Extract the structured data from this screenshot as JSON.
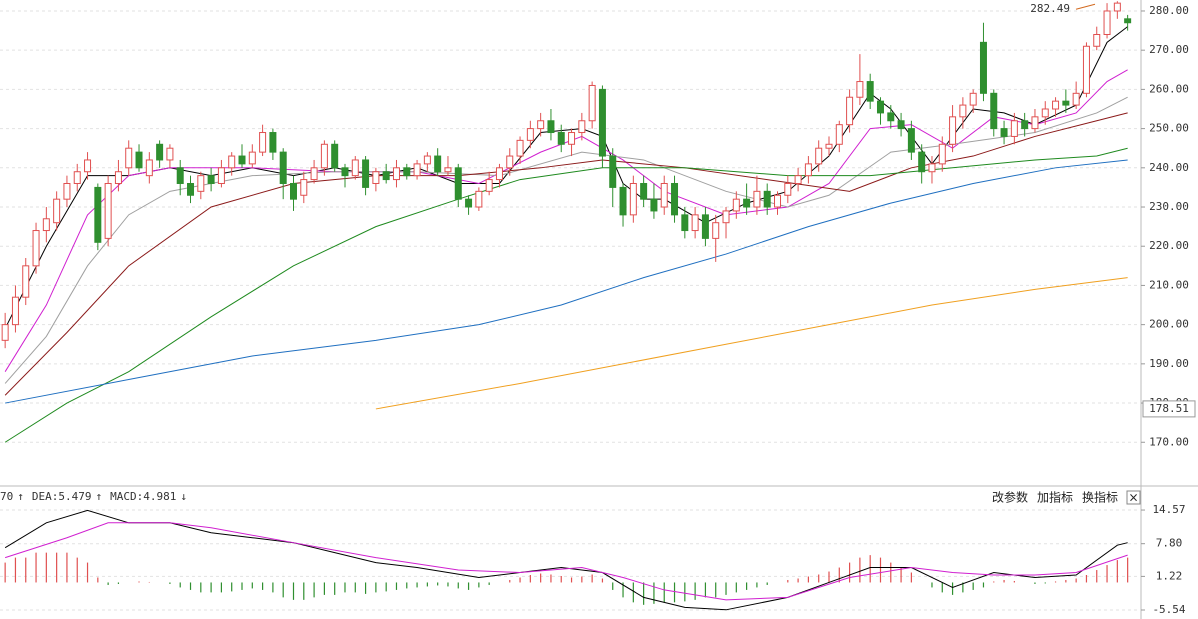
{
  "chart_data": [
    {
      "type": "candlestick",
      "rising_color": "#e05050",
      "falling_color": "#2f8f2f",
      "open": [
        196,
        200,
        207,
        215,
        224,
        226,
        232,
        236,
        239,
        235,
        222,
        236,
        240,
        244,
        238,
        246,
        242,
        240,
        236,
        234,
        238,
        236,
        240,
        243,
        241,
        244,
        249,
        244,
        236,
        233,
        237,
        240,
        246,
        240,
        238,
        242,
        236,
        239,
        237,
        240,
        238,
        241,
        243,
        239,
        240,
        232,
        230,
        234,
        237,
        240,
        243,
        247,
        250,
        252,
        249,
        246,
        249,
        252,
        260,
        243,
        235,
        228,
        236,
        232,
        230,
        236,
        228,
        224,
        228,
        222,
        226,
        229,
        232,
        230,
        234,
        230,
        233,
        236,
        238,
        241,
        245,
        246,
        251,
        258,
        262,
        257,
        254,
        252,
        250,
        244,
        239,
        241,
        246,
        253,
        256,
        272,
        259,
        250,
        248,
        252,
        250,
        253,
        255,
        257,
        256,
        259,
        271,
        274,
        280,
        278
      ],
      "close": [
        200,
        207,
        215,
        224,
        227,
        232,
        236,
        239,
        242,
        221,
        236,
        239,
        245,
        240,
        242,
        242,
        245,
        236,
        233,
        238,
        236,
        240,
        243,
        241,
        244,
        249,
        244,
        236,
        232,
        237,
        240,
        246,
        240,
        238,
        242,
        235,
        239,
        237,
        240,
        238,
        241,
        243,
        239,
        240,
        232,
        230,
        234,
        237,
        240,
        243,
        247,
        250,
        252,
        249,
        246,
        249,
        252,
        261,
        243,
        235,
        228,
        236,
        232,
        229,
        236,
        228,
        224,
        228,
        222,
        226,
        229,
        232,
        230,
        234,
        230,
        233,
        236,
        238,
        241,
        245,
        246,
        251,
        258,
        262,
        257,
        254,
        252,
        250,
        244,
        239,
        241,
        246,
        253,
        256,
        259,
        259,
        250,
        248,
        252,
        250,
        253,
        255,
        257,
        256,
        259,
        271,
        274,
        280,
        282,
        277
      ],
      "high": [
        203,
        210,
        217,
        226,
        230,
        234,
        238,
        241,
        244,
        236,
        238,
        242,
        247,
        246,
        244,
        247,
        246,
        242,
        238,
        239,
        240,
        242,
        244,
        246,
        246,
        251,
        250,
        245,
        238,
        239,
        242,
        247,
        247,
        241,
        243,
        243,
        240,
        241,
        242,
        241,
        242,
        244,
        245,
        243,
        241,
        233,
        235,
        239,
        241,
        245,
        248,
        252,
        254,
        255,
        251,
        250,
        254,
        262,
        261,
        245,
        236,
        238,
        238,
        236,
        238,
        238,
        230,
        230,
        230,
        228,
        230,
        234,
        236,
        238,
        236,
        234,
        238,
        240,
        243,
        247,
        248,
        252,
        260,
        269,
        264,
        258,
        256,
        254,
        252,
        246,
        243,
        248,
        256,
        258,
        260,
        277,
        260,
        252,
        254,
        254,
        255,
        257,
        258,
        260,
        262,
        272,
        276,
        282,
        282.49,
        279
      ],
      "low": [
        194,
        198,
        205,
        213,
        221,
        224,
        230,
        234,
        237,
        219,
        220,
        234,
        238,
        239,
        236,
        240,
        240,
        233,
        231,
        232,
        234,
        235,
        238,
        240,
        240,
        243,
        242,
        232,
        229,
        231,
        236,
        238,
        239,
        235,
        237,
        233,
        234,
        236,
        235,
        237,
        237,
        239,
        238,
        238,
        230,
        228,
        229,
        233,
        235,
        238,
        241,
        245,
        248,
        247,
        244,
        243,
        247,
        250,
        240,
        230,
        225,
        226,
        230,
        227,
        228,
        226,
        222,
        222,
        220,
        216,
        222,
        227,
        228,
        228,
        228,
        228,
        231,
        234,
        236,
        239,
        243,
        244,
        249,
        256,
        255,
        251,
        250,
        248,
        242,
        236,
        236,
        239,
        244,
        250,
        254,
        257,
        248,
        246,
        246,
        248,
        249,
        251,
        253,
        254,
        255,
        258,
        270,
        273,
        278,
        275
      ],
      "xlim": [
        -0.5,
        110.2
      ],
      "ylim": [
        159.1,
        282.8
      ],
      "grid": true,
      "yticks": [
        {
          "value": 170,
          "label": "170.00"
        },
        {
          "value": 180,
          "label": "180.00"
        },
        {
          "value": 190,
          "label": "190.00"
        },
        {
          "value": 200,
          "label": "200.00"
        },
        {
          "value": 210,
          "label": "210.00"
        },
        {
          "value": 220,
          "label": "220.00"
        },
        {
          "value": 230,
          "label": "230.00"
        },
        {
          "value": 240,
          "label": "240.00"
        },
        {
          "value": 250,
          "label": "250.00"
        },
        {
          "value": 260,
          "label": "260.00"
        },
        {
          "value": 270,
          "label": "270.00"
        },
        {
          "value": 280,
          "label": "280.00"
        }
      ],
      "series": [
        {
          "color": "#000000",
          "x": [
            0,
            4,
            8,
            12,
            16,
            20,
            24,
            28,
            32,
            36,
            40,
            44,
            48,
            52,
            56,
            58,
            60,
            62,
            64,
            68,
            72,
            76,
            80,
            84,
            86,
            90,
            94,
            97,
            100,
            104,
            107,
            109
          ],
          "values": [
            199,
            220,
            238,
            238,
            240,
            238,
            240,
            238,
            240,
            238,
            240,
            236,
            236,
            249,
            250,
            248,
            236,
            232,
            232,
            226,
            231,
            234,
            243,
            259,
            255,
            241,
            255,
            254,
            251,
            256,
            272,
            276
          ]
        },
        {
          "color": "#d020d0",
          "x": [
            0,
            4,
            8,
            12,
            16,
            24,
            32,
            40,
            46,
            52,
            56,
            60,
            64,
            70,
            76,
            80,
            84,
            88,
            92,
            96,
            100,
            104,
            107,
            109
          ],
          "values": [
            188,
            205,
            228,
            238,
            240,
            240,
            239,
            239,
            236,
            244,
            248,
            242,
            234,
            228,
            230,
            236,
            250,
            251,
            245,
            253,
            251,
            254,
            262,
            265
          ]
        },
        {
          "color": "#a0a0a0",
          "x": [
            0,
            4,
            8,
            12,
            16,
            24,
            32,
            40,
            48,
            56,
            62,
            70,
            76,
            80,
            86,
            92,
            100,
            106,
            109
          ],
          "values": [
            185,
            197,
            215,
            228,
            234,
            238,
            239,
            239,
            238,
            244,
            242,
            234,
            230,
            233,
            244,
            246,
            249,
            254,
            258
          ]
        },
        {
          "color": "#8b1a1a",
          "x": [
            0,
            6,
            12,
            20,
            28,
            36,
            44,
            52,
            58,
            66,
            74,
            82,
            88,
            94,
            100,
            106,
            109
          ],
          "values": [
            182,
            198,
            215,
            230,
            236,
            238,
            238,
            240,
            242,
            240,
            237,
            234,
            240,
            243,
            248,
            252,
            254
          ]
        },
        {
          "color": "#1f8a1f",
          "x": [
            0,
            6,
            12,
            20,
            28,
            36,
            44,
            50,
            58,
            66,
            76,
            84,
            92,
            100,
            106,
            109
          ],
          "values": [
            170,
            180,
            188,
            202,
            215,
            225,
            232,
            237,
            240,
            240,
            238,
            238,
            240,
            242,
            243,
            245
          ]
        },
        {
          "color": "#1f6fc0",
          "x": [
            0,
            12,
            24,
            36,
            46,
            54,
            62,
            70,
            78,
            86,
            94,
            102,
            109
          ],
          "values": [
            180,
            186,
            192,
            196,
            200,
            205,
            212,
            218,
            225,
            231,
            236,
            240,
            242
          ]
        },
        {
          "color": "#f0a020",
          "x": [
            36,
            50,
            60,
            70,
            80,
            90,
            100,
            109
          ],
          "values": [
            178.5,
            185,
            190,
            195,
            200,
            205,
            209,
            212
          ]
        }
      ],
      "max_label": 282.49,
      "max_color": "#d2691e",
      "price_marker": 178.51
    },
    {
      "type": "macd",
      "rising_color": "#e05050",
      "falling_color": "#2f8f2f",
      "xlim": [
        -0.5,
        110.2
      ],
      "ylim": [
        -7.35,
        18.6
      ],
      "grid": true,
      "yticks": [
        14.57,
        {
          "value": 7.8,
          "label": "7.80"
        },
        1.22,
        -5.54
      ],
      "header": [
        {
          "text": "70",
          "arrow": "↑",
          "color": "#000000"
        },
        {
          "text": "DEA:5.479",
          "arrow": "↑",
          "color": "#d020d0"
        },
        {
          "text": "MACD:4.981",
          "arrow": "↓",
          "color": "#666666"
        }
      ],
      "series": [
        {
          "color": "#000000",
          "x": [
            0,
            4,
            8,
            12,
            16,
            20,
            24,
            28,
            32,
            36,
            40,
            46,
            50,
            54,
            58,
            62,
            66,
            70,
            76,
            80,
            84,
            88,
            92,
            96,
            100,
            104,
            108,
            109
          ],
          "values": [
            7,
            12,
            14.5,
            12,
            12,
            10,
            9,
            8,
            6,
            4,
            3,
            1,
            2,
            3,
            2,
            -3,
            -5,
            -5.5,
            -3,
            0,
            3,
            3,
            -1,
            2,
            1,
            1.5,
            7.5,
            8
          ]
        },
        {
          "color": "#d020d0",
          "x": [
            0,
            6,
            10,
            16,
            20,
            28,
            36,
            44,
            50,
            56,
            60,
            64,
            70,
            76,
            82,
            88,
            92,
            96,
            100,
            104,
            109
          ],
          "values": [
            5,
            9,
            12,
            12,
            11,
            8,
            5,
            2.5,
            2,
            3,
            1,
            -1.5,
            -3.5,
            -3,
            1,
            3,
            2,
            1.5,
            1.5,
            2,
            5.5
          ]
        }
      ],
      "histogram": [
        4,
        5,
        5,
        6,
        6,
        6,
        6,
        5,
        4,
        1,
        -0.5,
        -0.3,
        0,
        0.2,
        0.1,
        0,
        -0.3,
        -1,
        -1.5,
        -2,
        -2,
        -2,
        -1.8,
        -1.5,
        -1.2,
        -1.5,
        -2,
        -3,
        -3.5,
        -3.5,
        -3,
        -2.5,
        -2.5,
        -2,
        -2,
        -2.3,
        -2,
        -1.8,
        -1.5,
        -1.2,
        -1,
        -0.8,
        -0.6,
        -0.8,
        -1.2,
        -1.5,
        -1,
        -0.5,
        0,
        0.5,
        1,
        1.5,
        1.8,
        1.6,
        1.3,
        1,
        1.2,
        1.6,
        0.8,
        -1.5,
        -3,
        -4,
        -4.5,
        -4.3,
        -4,
        -4,
        -3.8,
        -3.5,
        -3,
        -3,
        -2.5,
        -2,
        -1.5,
        -1,
        -0.5,
        0,
        0.5,
        0.8,
        1.2,
        1.6,
        2.2,
        3,
        4,
        5,
        5.5,
        5,
        4,
        3,
        2,
        0,
        -1,
        -2,
        -2.5,
        -2,
        -1.5,
        -1,
        0.2,
        0.5,
        0.3,
        0,
        -0.3,
        -0.2,
        0.2,
        0.5,
        0.8,
        1.5,
        2.5,
        3.5,
        4.5,
        5
      ]
    }
  ],
  "toolbar": [
    "改参数",
    "加指标",
    "换指标",
    "×"
  ]
}
